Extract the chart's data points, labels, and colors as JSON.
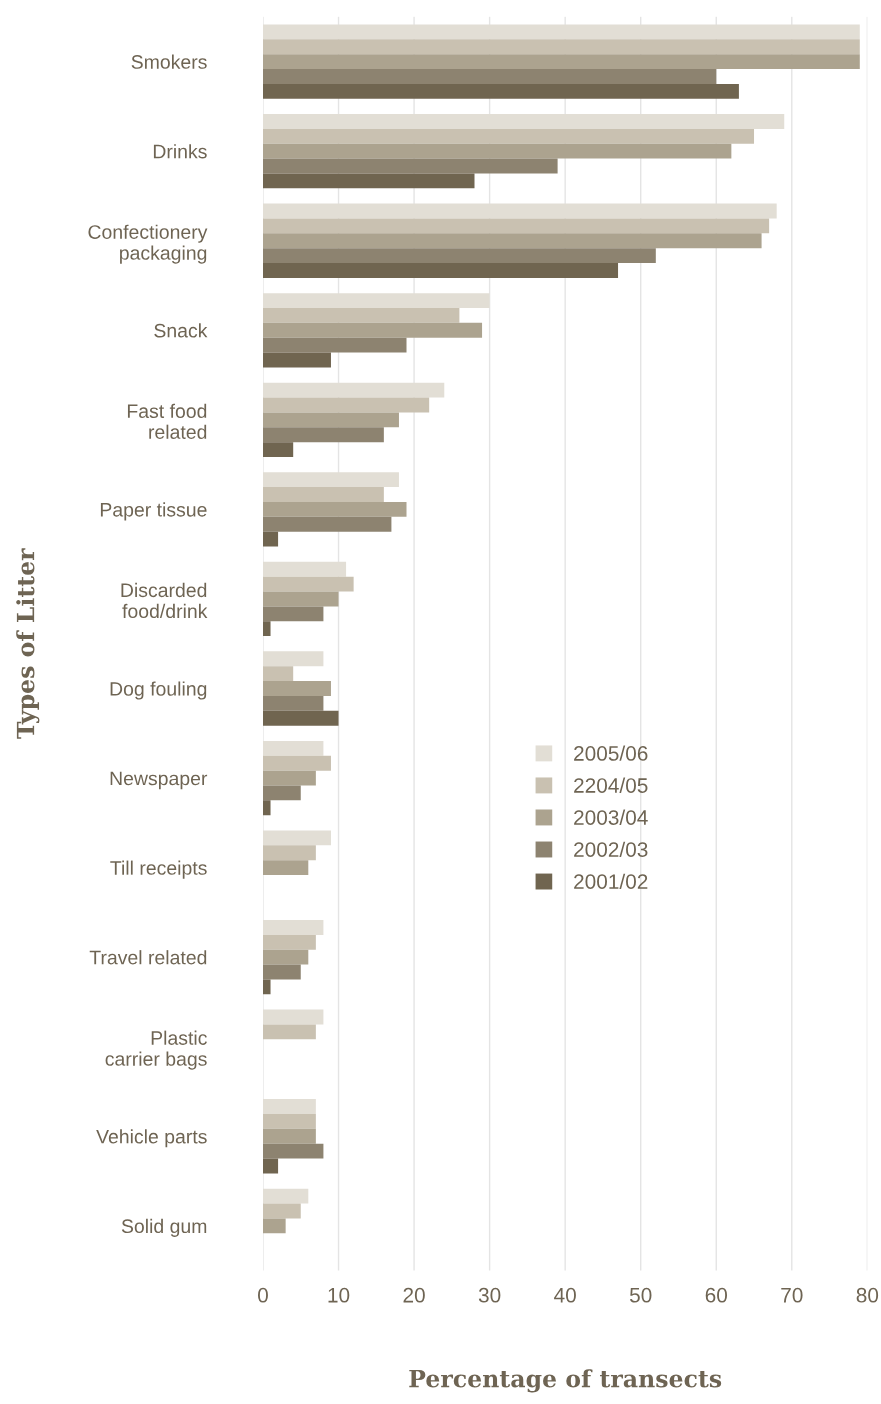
{
  "chart_data": {
    "type": "bar",
    "orientation": "horizontal",
    "ylabel": "Types of Litter",
    "xlabel": "Percentage of transects",
    "categories": [
      "Smokers",
      "Drinks",
      "Confectionery\npackaging",
      "Snack",
      "Fast food\nrelated",
      "Paper tissue",
      "Discarded\nfood/drink",
      "Dog fouling",
      "Newspaper",
      "Till receipts",
      "Travel related",
      "Plastic\ncarrier bags",
      "Vehicle parts",
      "Solid gum"
    ],
    "series": [
      {
        "name": "2005/06",
        "color": "#e2ded5",
        "values": [
          79,
          69,
          68,
          30,
          24,
          18,
          11,
          8,
          8,
          9,
          8,
          8,
          7,
          6
        ]
      },
      {
        "name": "2204/05",
        "color": "#c9c1b1",
        "values": [
          79,
          65,
          67,
          26,
          22,
          16,
          12,
          4,
          9,
          7,
          7,
          7,
          7,
          5
        ]
      },
      {
        "name": "2003/04",
        "color": "#aca38f",
        "values": [
          79,
          62,
          66,
          29,
          18,
          19,
          10,
          9,
          7,
          6,
          6,
          null,
          7,
          3
        ]
      },
      {
        "name": "2002/03",
        "color": "#8d8370",
        "values": [
          60,
          39,
          52,
          19,
          16,
          17,
          8,
          8,
          5,
          null,
          5,
          null,
          8,
          null
        ]
      },
      {
        "name": "2001/02",
        "color": "#706550",
        "values": [
          63,
          28,
          47,
          9,
          4,
          2,
          1,
          10,
          1,
          null,
          1,
          null,
          2,
          null
        ]
      }
    ],
    "xlim": [
      0,
      80
    ],
    "xticks": [
      0,
      10,
      20,
      30,
      40,
      50,
      60,
      70,
      80
    ],
    "grid": "x",
    "legend": "right"
  }
}
